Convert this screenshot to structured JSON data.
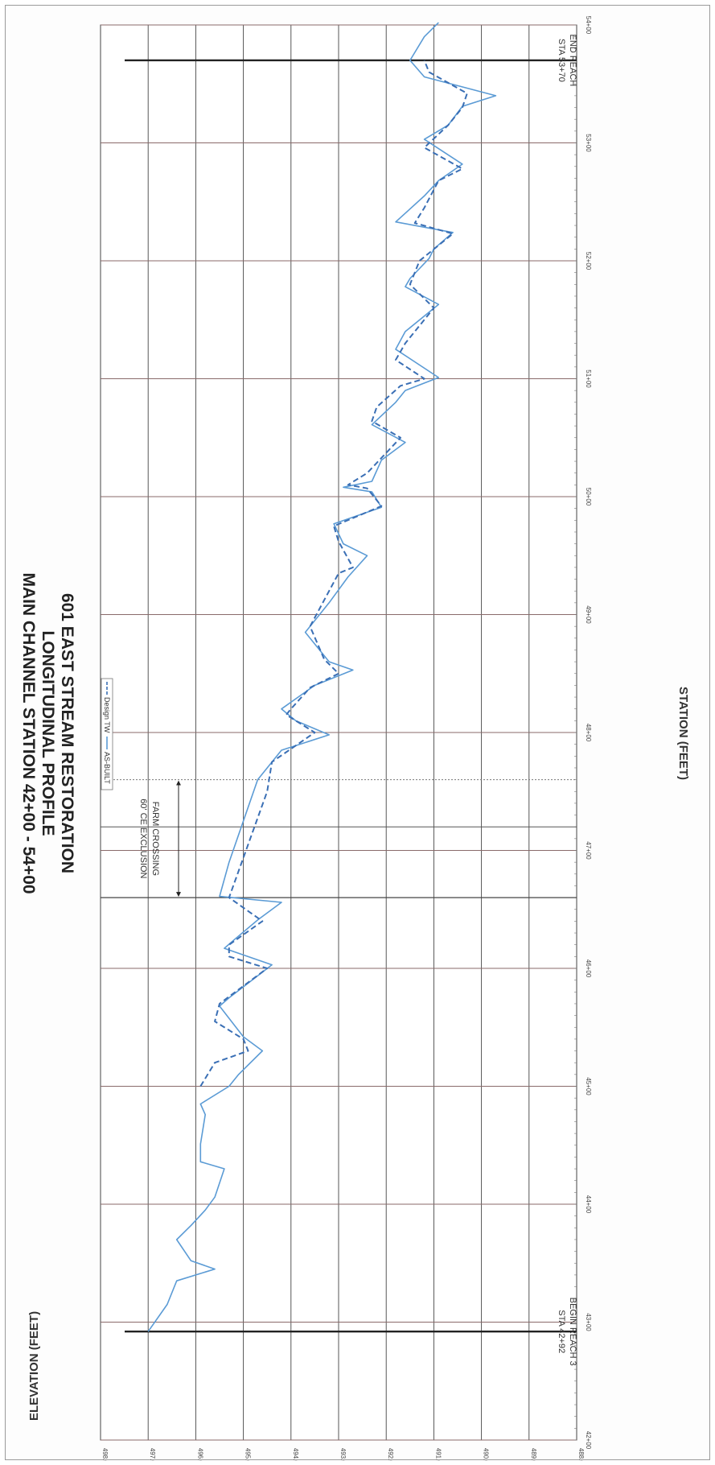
{
  "chart_data": {
    "type": "line",
    "title_lines": [
      "601 EAST STREAM RESTORATION",
      "LONGITUDINAL PROFILE",
      "MAIN CHANNEL STATION 42+00 - 54+00"
    ],
    "xlabel": "STATION (FEET)",
    "ylabel": "ELEVATION (FEET)",
    "xlim": [
      4200,
      5400
    ],
    "ylim": [
      488,
      498
    ],
    "x_ticks": [
      {
        "value": 4200,
        "label": "42+00"
      },
      {
        "value": 4300,
        "label": "43+00"
      },
      {
        "value": 4400,
        "label": "44+00"
      },
      {
        "value": 4500,
        "label": "45+00"
      },
      {
        "value": 4600,
        "label": "46+00"
      },
      {
        "value": 4700,
        "label": "47+00"
      },
      {
        "value": 4800,
        "label": "48+00"
      },
      {
        "value": 4900,
        "label": "49+00"
      },
      {
        "value": 5000,
        "label": "50+00"
      },
      {
        "value": 5100,
        "label": "51+00"
      },
      {
        "value": 5200,
        "label": "52+00"
      },
      {
        "value": 5300,
        "label": "53+00"
      },
      {
        "value": 5400,
        "label": "54+00"
      }
    ],
    "y_ticks": [
      {
        "value": 488,
        "label": "488.00"
      },
      {
        "value": 489,
        "label": "489.00"
      },
      {
        "value": 490,
        "label": "490.00"
      },
      {
        "value": 491,
        "label": "491.00"
      },
      {
        "value": 492,
        "label": "492.00"
      },
      {
        "value": 493,
        "label": "493.00"
      },
      {
        "value": 494,
        "label": "494.00"
      },
      {
        "value": 495,
        "label": "495.00"
      },
      {
        "value": 496,
        "label": "496.00"
      },
      {
        "value": 497,
        "label": "497.00"
      },
      {
        "value": 498,
        "label": "498.00"
      }
    ],
    "series": [
      {
        "name": "AS-BUILT",
        "style": "solid",
        "color": "#5b9bd5",
        "points": [
          [
            4292,
            497.0
          ],
          [
            4315,
            496.6
          ],
          [
            4335,
            496.4
          ],
          [
            4345,
            495.6
          ],
          [
            4352,
            496.1
          ],
          [
            4370,
            496.4
          ],
          [
            4382,
            496.1
          ],
          [
            4395,
            495.8
          ],
          [
            4406,
            495.6
          ],
          [
            4430,
            495.4
          ],
          [
            4436,
            495.9
          ],
          [
            4451,
            495.9
          ],
          [
            4476,
            495.8
          ],
          [
            4485,
            495.9
          ],
          [
            4500,
            495.3
          ],
          [
            4510,
            495.1
          ],
          [
            4530,
            494.6
          ],
          [
            4542,
            495.0
          ],
          [
            4568,
            495.5
          ],
          [
            4575,
            495.3
          ],
          [
            4603,
            494.4
          ],
          [
            4617,
            495.4
          ],
          [
            4624,
            495.2
          ],
          [
            4641,
            494.7
          ],
          [
            4656,
            494.2
          ],
          [
            4661,
            495.5
          ],
          [
            4690,
            495.3
          ],
          [
            4760,
            494.7
          ],
          [
            4770,
            494.5
          ],
          [
            4785,
            494.2
          ],
          [
            4798,
            493.2
          ],
          [
            4810,
            493.9
          ],
          [
            4820,
            494.2
          ],
          [
            4840,
            493.5
          ],
          [
            4853,
            492.7
          ],
          [
            4860,
            493.2
          ],
          [
            4885,
            493.7
          ],
          [
            4910,
            493.2
          ],
          [
            4932,
            492.8
          ],
          [
            4950,
            492.4
          ],
          [
            4960,
            492.9
          ],
          [
            4977,
            493.1
          ],
          [
            4991,
            492.1
          ],
          [
            5004,
            492.3
          ],
          [
            5008,
            492.9
          ],
          [
            5013,
            492.3
          ],
          [
            5031,
            492.1
          ],
          [
            5046,
            491.6
          ],
          [
            5061,
            492.3
          ],
          [
            5080,
            491.8
          ],
          [
            5090,
            491.6
          ],
          [
            5101,
            490.9
          ],
          [
            5125,
            491.8
          ],
          [
            5140,
            491.6
          ],
          [
            5163,
            490.9
          ],
          [
            5178,
            491.6
          ],
          [
            5185,
            491.5
          ],
          [
            5202,
            491.1
          ],
          [
            5210,
            491.0
          ],
          [
            5224,
            490.6
          ],
          [
            5233,
            491.8
          ],
          [
            5255,
            491.2
          ],
          [
            5268,
            490.9
          ],
          [
            5282,
            490.4
          ],
          [
            5303,
            491.2
          ],
          [
            5315,
            490.7
          ],
          [
            5331,
            490.4
          ],
          [
            5340,
            489.7
          ],
          [
            5356,
            491.2
          ],
          [
            5370,
            491.5
          ],
          [
            5390,
            491.2
          ],
          [
            5402,
            490.9
          ]
        ]
      },
      {
        "name": "Design TW",
        "style": "dashed",
        "color": "#3a6fb5",
        "points": [
          [
            4500,
            495.9
          ],
          [
            4520,
            495.6
          ],
          [
            4530,
            494.9
          ],
          [
            4540,
            495.0
          ],
          [
            4555,
            495.6
          ],
          [
            4570,
            495.5
          ],
          [
            4600,
            494.5
          ],
          [
            4610,
            495.3
          ],
          [
            4620,
            495.3
          ],
          [
            4640,
            494.6
          ],
          [
            4660,
            495.3
          ],
          [
            4750,
            494.5
          ],
          [
            4775,
            494.4
          ],
          [
            4800,
            493.5
          ],
          [
            4815,
            494.1
          ],
          [
            4820,
            494.0
          ],
          [
            4838,
            493.6
          ],
          [
            4850,
            493.0
          ],
          [
            4862,
            493.3
          ],
          [
            4890,
            493.6
          ],
          [
            4935,
            493.0
          ],
          [
            4940,
            492.7
          ],
          [
            4962,
            493.0
          ],
          [
            4975,
            493.1
          ],
          [
            4992,
            492.1
          ],
          [
            5007,
            492.4
          ],
          [
            5010,
            492.8
          ],
          [
            5020,
            492.4
          ],
          [
            5050,
            491.7
          ],
          [
            5064,
            492.3
          ],
          [
            5076,
            492.2
          ],
          [
            5094,
            491.7
          ],
          [
            5100,
            491.2
          ],
          [
            5116,
            491.8
          ],
          [
            5130,
            491.6
          ],
          [
            5160,
            491.0
          ],
          [
            5180,
            491.5
          ],
          [
            5200,
            491.3
          ],
          [
            5223,
            490.6
          ],
          [
            5232,
            491.4
          ],
          [
            5245,
            491.2
          ],
          [
            5268,
            490.9
          ],
          [
            5278,
            490.4
          ],
          [
            5296,
            491.2
          ],
          [
            5315,
            490.7
          ],
          [
            5330,
            490.4
          ],
          [
            5342,
            490.3
          ],
          [
            5360,
            491.1
          ],
          [
            5370,
            491.2
          ]
        ]
      }
    ],
    "vertical_markers": [
      {
        "x": 4292,
        "line1": "BEGIN REACH 3",
        "line2": "STA 42+92"
      },
      {
        "x": 5370,
        "line1": "END REACH",
        "line2": "STA 53+70"
      }
    ],
    "exclusion": {
      "from": 4660,
      "to": 4760,
      "line1": "60' CE EXCLUSION",
      "line2": "FARM CROSSING"
    },
    "extra_vlines": [
      4720
    ]
  },
  "legend": {
    "design_label": "Design TW",
    "asbuilt_label": "AS-BUILT"
  }
}
